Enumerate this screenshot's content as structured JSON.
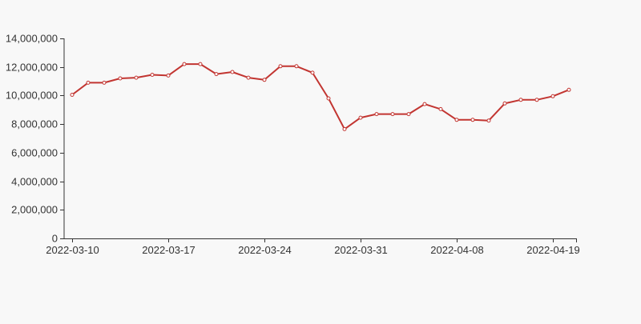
{
  "chart_data": {
    "type": "line",
    "title": "",
    "xlabel": "",
    "ylabel": "",
    "ylim": [
      0,
      14000000
    ],
    "yticks": [
      0,
      2000000,
      4000000,
      6000000,
      8000000,
      10000000,
      12000000,
      14000000
    ],
    "ytick_labels": [
      "0",
      "2,000,000",
      "4,000,000",
      "6,000,000",
      "8,000,000",
      "10,000,000",
      "12,000,000",
      "14,000,000"
    ],
    "x_tick_labels": [
      {
        "index": 0,
        "label": "2022-03-10"
      },
      {
        "index": 6,
        "label": "2022-03-17"
      },
      {
        "index": 12,
        "label": "2022-03-24"
      },
      {
        "index": 18,
        "label": "2022-03-31"
      },
      {
        "index": 24,
        "label": "2022-04-08"
      },
      {
        "index": 30,
        "label": "2022-04-19"
      }
    ],
    "grid": false,
    "colors": {
      "line": "#c23531",
      "axis": "#333333",
      "background": "#f8f8f8"
    },
    "series": [
      {
        "values": [
          10050000,
          10900000,
          10900000,
          11200000,
          11250000,
          11450000,
          11400000,
          12200000,
          12200000,
          11500000,
          11650000,
          11250000,
          11100000,
          12050000,
          12050000,
          11600000,
          9800000,
          7650000,
          8450000,
          8700000,
          8700000,
          8700000,
          9400000,
          9050000,
          8300000,
          8300000,
          8250000,
          9450000,
          9700000,
          9700000,
          9950000,
          10400000
        ]
      }
    ]
  }
}
